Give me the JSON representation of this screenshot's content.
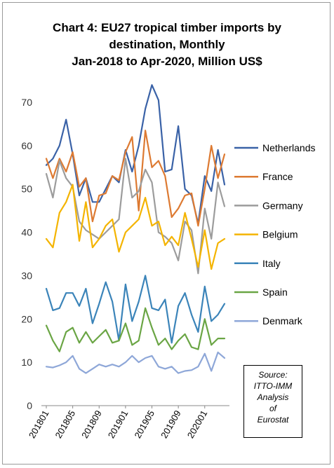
{
  "chart_data": {
    "type": "line",
    "title_lines": [
      "Chart 4: EU27 tropical timber imports by",
      "destination, Monthly",
      "Jan-2018 to Apr-2020, Million US$"
    ],
    "xlabel": "",
    "ylabel": "",
    "ylim": [
      0,
      70
    ],
    "yticks": [
      0,
      10,
      20,
      30,
      40,
      50,
      60,
      70
    ],
    "grid": false,
    "legend_position": "right",
    "x_tick_labels": [
      "201801",
      "201805",
      "201809",
      "201901",
      "201905",
      "201909",
      "202001"
    ],
    "x_tick_every": 4,
    "x": [
      "201801",
      "201802",
      "201803",
      "201804",
      "201805",
      "201806",
      "201807",
      "201808",
      "201809",
      "201810",
      "201811",
      "201812",
      "201901",
      "201902",
      "201903",
      "201904",
      "201905",
      "201906",
      "201907",
      "201908",
      "201909",
      "201910",
      "201911",
      "201912",
      "202001",
      "202002",
      "202003",
      "202004"
    ],
    "series": [
      {
        "name": "Netherlands",
        "color": "#3a62a7",
        "values": [
          55.5,
          57,
          60,
          66,
          58,
          48.5,
          52.5,
          47,
          47,
          50,
          53,
          51.5,
          59,
          54,
          60,
          68.5,
          74,
          70.5,
          54,
          54.5,
          64.5,
          50,
          48.5,
          42,
          53,
          49.5,
          59,
          51
        ]
      },
      {
        "name": "France",
        "color": "#dd7a32",
        "values": [
          57,
          52.5,
          57,
          54,
          58.5,
          50.5,
          52.5,
          42.5,
          48.5,
          49,
          53,
          52,
          58.5,
          62,
          45,
          63.5,
          55,
          56.5,
          53,
          43.5,
          45.5,
          48.5,
          49,
          41.5,
          50,
          60,
          52.5,
          58
        ]
      },
      {
        "name": "Germany",
        "color": "#9c9c9c",
        "values": [
          53.5,
          48,
          56.5,
          52.5,
          50.5,
          42.5,
          40.5,
          39.5,
          38.5,
          40,
          41.5,
          43,
          57,
          48,
          49.5,
          54.5,
          51.5,
          40,
          39,
          37.5,
          33.5,
          42.5,
          40.5,
          30.5,
          45.5,
          38.5,
          51.5,
          46
        ]
      },
      {
        "name": "Belgium",
        "color": "#f4b400",
        "values": [
          38.5,
          36.5,
          44.5,
          47,
          51,
          38,
          47,
          36.5,
          38.5,
          41.5,
          43,
          35.5,
          40,
          41.5,
          43,
          48,
          41.5,
          42.5,
          37,
          39,
          37,
          44.5,
          38.5,
          32,
          40.5,
          31.5,
          37.5,
          38.5
        ]
      },
      {
        "name": "Italy",
        "color": "#3b84b9",
        "values": [
          27,
          22,
          22.5,
          26,
          26,
          23,
          27,
          19,
          23.5,
          28.5,
          24,
          15,
          28,
          19.5,
          24,
          30,
          22.5,
          22,
          24.5,
          14.5,
          23,
          26,
          21,
          17,
          27.5,
          19.5,
          21,
          23.5
        ]
      },
      {
        "name": "Spain",
        "color": "#6aa544",
        "values": [
          18.5,
          15,
          12.5,
          17,
          18,
          14.5,
          17,
          14.5,
          16,
          17.5,
          14.5,
          15,
          19,
          14,
          15,
          22.5,
          18,
          14,
          15.5,
          13,
          15,
          16.5,
          13.5,
          13,
          20,
          14,
          15.5,
          15.5
        ]
      },
      {
        "name": "Denmark",
        "color": "#8ea7d8",
        "values": [
          9,
          8.8,
          9.3,
          10,
          11.5,
          8.5,
          7.5,
          8.5,
          9.5,
          9,
          9.5,
          9,
          10,
          11.5,
          10,
          11,
          11.5,
          9,
          8.5,
          9,
          7.5,
          8,
          8.2,
          9,
          12,
          8,
          12.3,
          11
        ]
      }
    ]
  },
  "source_note": [
    "Source:",
    "ITTO-IMM",
    "Analysis",
    "of",
    "Eurostat"
  ]
}
